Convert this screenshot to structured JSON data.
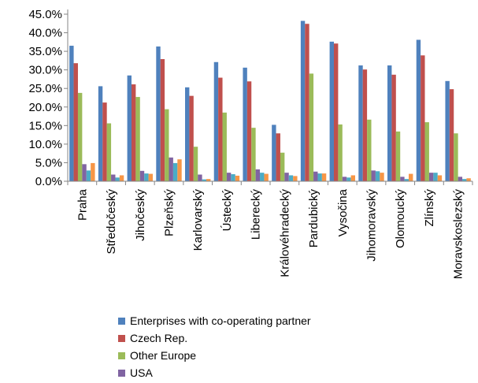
{
  "chart_data": {
    "type": "bar",
    "categories": [
      "Praha",
      "Středočeský",
      "Jihočeský",
      "Plzeňský",
      "Karlovarský",
      "Ústecký",
      "Liberecký",
      "Královéhradecký",
      "Pardubický",
      "Vysočina",
      "Jihomoravský",
      "Olomoucký",
      "Zlínský",
      "Moravskoslezský"
    ],
    "series": [
      {
        "name": "Enterprises with co-operating partner",
        "color": "#4F81BD",
        "values": [
          36.5,
          25.6,
          28.5,
          36.3,
          25.3,
          32.1,
          30.6,
          15.2,
          43.2,
          37.6,
          31.2,
          31.2,
          38.1,
          27.0
        ]
      },
      {
        "name": "Czech Rep.",
        "color": "#C0504D",
        "values": [
          31.8,
          21.2,
          26.1,
          32.9,
          23.0,
          27.9,
          26.9,
          12.9,
          42.4,
          37.1,
          30.1,
          28.7,
          33.9,
          24.8
        ]
      },
      {
        "name": "Other Europe",
        "color": "#9BBB59",
        "values": [
          23.8,
          15.6,
          22.7,
          19.4,
          9.3,
          18.5,
          14.4,
          7.7,
          29.0,
          15.3,
          16.6,
          13.4,
          15.9,
          12.9
        ]
      },
      {
        "name": "USA",
        "color": "#8064A2",
        "values": [
          4.6,
          1.8,
          2.8,
          6.4,
          1.8,
          2.3,
          3.2,
          2.3,
          2.6,
          1.2,
          2.9,
          1.2,
          2.3,
          1.2
        ]
      },
      {
        "name": "",
        "color": "#4BACC6",
        "values": [
          2.9,
          1.0,
          2.1,
          4.9,
          0.5,
          1.9,
          2.3,
          1.6,
          2.1,
          1.0,
          2.7,
          0.6,
          2.3,
          0.6
        ]
      },
      {
        "name": "",
        "color": "#F79646",
        "values": [
          4.9,
          1.6,
          2.0,
          5.9,
          0.6,
          1.5,
          2.0,
          1.4,
          2.1,
          1.6,
          2.3,
          2.0,
          1.6,
          0.8
        ]
      }
    ],
    "ylim": [
      0,
      45
    ],
    "ytick_step": 5,
    "ytick_format": "percent-1dp",
    "grid": false,
    "legend_position": "bottom"
  }
}
